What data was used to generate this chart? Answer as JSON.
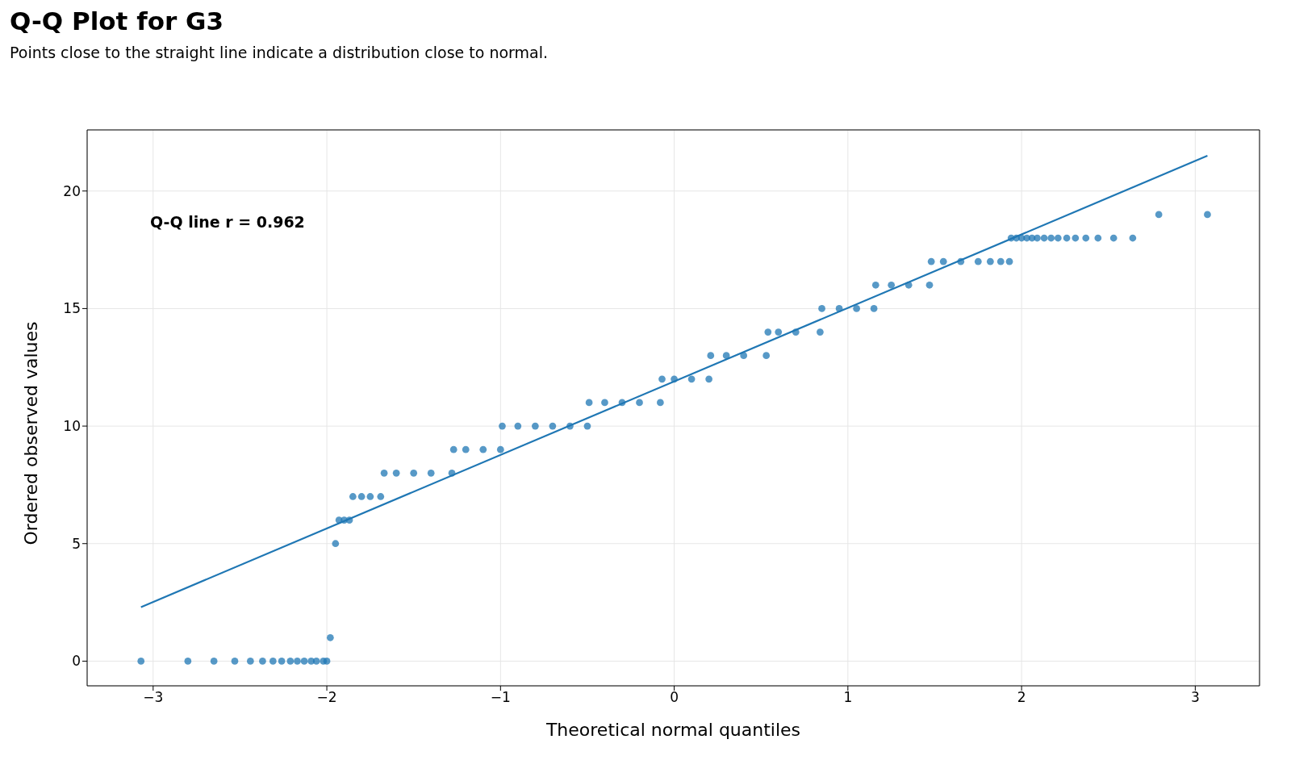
{
  "chart_data": {
    "type": "scatter",
    "title": "Q-Q Plot for G3",
    "subtitle": "Points close to the straight line indicate a distribution close to normal.",
    "xlabel": "Theoretical normal quantiles",
    "ylabel": "Ordered observed values",
    "annotations": [
      "Q-Q line r = 0.962"
    ],
    "xlim": [
      -3.38,
      3.37
    ],
    "ylim": [
      -1.05,
      22.6
    ],
    "xticks": [
      {
        "value": -3,
        "label": "−3"
      },
      {
        "value": -2,
        "label": "−2"
      },
      {
        "value": -1,
        "label": "−1"
      },
      0,
      1,
      2,
      3
    ],
    "yticks": [
      0,
      5,
      10,
      15,
      20
    ],
    "grid": true,
    "series": [
      {
        "marker": "circle",
        "color": "#1f77b4",
        "x": [
          -3.07,
          -2.8,
          -2.65,
          -2.53,
          -2.44,
          -2.37,
          -2.31,
          -2.26,
          -2.21,
          -2.17,
          -2.13,
          -2.09,
          -2.06,
          -2.02,
          -2.0,
          -1.98,
          -1.95,
          -1.93,
          -1.9,
          -1.87,
          -1.85,
          -1.8,
          -1.75,
          -1.69,
          -1.67,
          -1.6,
          -1.5,
          -1.4,
          -1.28,
          -1.27,
          -1.2,
          -1.1,
          -1.0,
          -0.99,
          -0.9,
          -0.8,
          -0.7,
          -0.6,
          -0.5,
          -0.49,
          -0.4,
          -0.3,
          -0.2,
          -0.08,
          -0.07,
          0.0,
          0.1,
          0.2,
          0.21,
          0.3,
          0.4,
          0.53,
          0.54,
          0.6,
          0.7,
          0.84,
          0.85,
          0.95,
          1.05,
          1.15,
          1.16,
          1.25,
          1.35,
          1.47,
          1.48,
          1.55,
          1.65,
          1.75,
          1.82,
          1.88,
          1.93,
          1.94,
          1.97,
          2.0,
          2.03,
          2.06,
          2.09,
          2.13,
          2.17,
          2.21,
          2.26,
          2.31,
          2.37,
          2.44,
          2.53,
          2.64,
          2.79,
          3.07
        ],
        "values": [
          0,
          0,
          0,
          0,
          0,
          0,
          0,
          0,
          0,
          0,
          0,
          0,
          0,
          0,
          0,
          1,
          5,
          6,
          6,
          6,
          7,
          7,
          7,
          7,
          8,
          8,
          8,
          8,
          8,
          9,
          9,
          9,
          9,
          10,
          10,
          10,
          10,
          10,
          10,
          11,
          11,
          11,
          11,
          11,
          12,
          12,
          12,
          12,
          13,
          13,
          13,
          13,
          14,
          14,
          14,
          14,
          15,
          15,
          15,
          15,
          16,
          16,
          16,
          16,
          17,
          17,
          17,
          17,
          17,
          17,
          17,
          18,
          18,
          18,
          18,
          18,
          18,
          18,
          18,
          18,
          18,
          18,
          18,
          18,
          18,
          18,
          19,
          19
        ]
      },
      {
        "type": "line",
        "color": "#1f77b4",
        "x": [
          -3.07,
          3.07
        ],
        "values": [
          2.3,
          21.5
        ]
      }
    ]
  }
}
